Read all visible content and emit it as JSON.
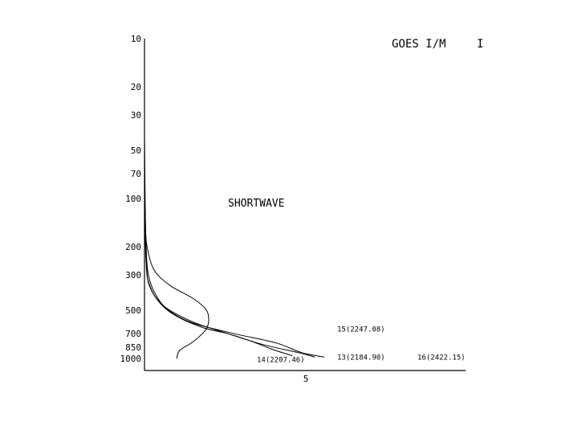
{
  "chart_data": {
    "type": "line",
    "title": "GOES I/M",
    "title_suffix": "I",
    "annotation": "SHORTWAVE",
    "ylabel": "",
    "xlabel": "",
    "y_scale": "log",
    "y_inverted": true,
    "ylim": [
      10,
      1000
    ],
    "xlim": [
      0,
      10
    ],
    "y_ticks": [
      10,
      20,
      30,
      50,
      70,
      100,
      200,
      300,
      500,
      700,
      850,
      1000
    ],
    "x_ticks": [
      5
    ],
    "grid": false,
    "series": [
      {
        "name": "13(2184.90)",
        "points": [
          [
            0.0,
            40
          ],
          [
            0.02,
            100
          ],
          [
            0.05,
            200
          ],
          [
            0.12,
            300
          ],
          [
            0.35,
            400
          ],
          [
            0.75,
            500
          ],
          [
            1.5,
            600
          ],
          [
            2.8,
            700
          ],
          [
            4.1,
            800
          ],
          [
            4.9,
            920
          ],
          [
            5.6,
            980
          ]
        ]
      },
      {
        "name": "14(2207.46)",
        "points": [
          [
            0.0,
            60
          ],
          [
            0.02,
            150
          ],
          [
            0.05,
            250
          ],
          [
            0.12,
            330
          ],
          [
            0.4,
            430
          ],
          [
            0.9,
            530
          ],
          [
            1.8,
            640
          ],
          [
            2.6,
            700
          ],
          [
            3.4,
            790
          ],
          [
            4.0,
            880
          ],
          [
            4.6,
            960
          ]
        ]
      },
      {
        "name": "15(2247.08)",
        "points": [
          [
            0.0,
            80
          ],
          [
            0.03,
            150
          ],
          [
            0.08,
            200
          ],
          [
            0.3,
            280
          ],
          [
            0.8,
            350
          ],
          [
            1.5,
            420
          ],
          [
            1.9,
            490
          ],
          [
            2.0,
            560
          ],
          [
            1.95,
            640
          ],
          [
            1.8,
            700
          ],
          [
            1.5,
            790
          ],
          [
            1.1,
            890
          ],
          [
            1.0,
            1000
          ]
        ]
      },
      {
        "name": "16(2422.15)",
        "points": [
          [
            0.0,
            100
          ],
          [
            0.02,
            170
          ],
          [
            0.06,
            250
          ],
          [
            0.15,
            350
          ],
          [
            0.6,
            470
          ],
          [
            1.5,
            590
          ],
          [
            2.6,
            700
          ],
          [
            3.7,
            820
          ],
          [
            4.8,
            920
          ],
          [
            5.3,
            980
          ]
        ]
      }
    ],
    "series_labels": [
      {
        "name": "15(2247.08)",
        "x": 6.0,
        "y": 655
      },
      {
        "name": "13(2184.90)",
        "x": 6.0,
        "y": 980
      },
      {
        "name": "16(2422.15)",
        "x": 8.5,
        "y": 980
      },
      {
        "name": "14(2207.46)",
        "x": 3.5,
        "y": 1020
      }
    ]
  }
}
